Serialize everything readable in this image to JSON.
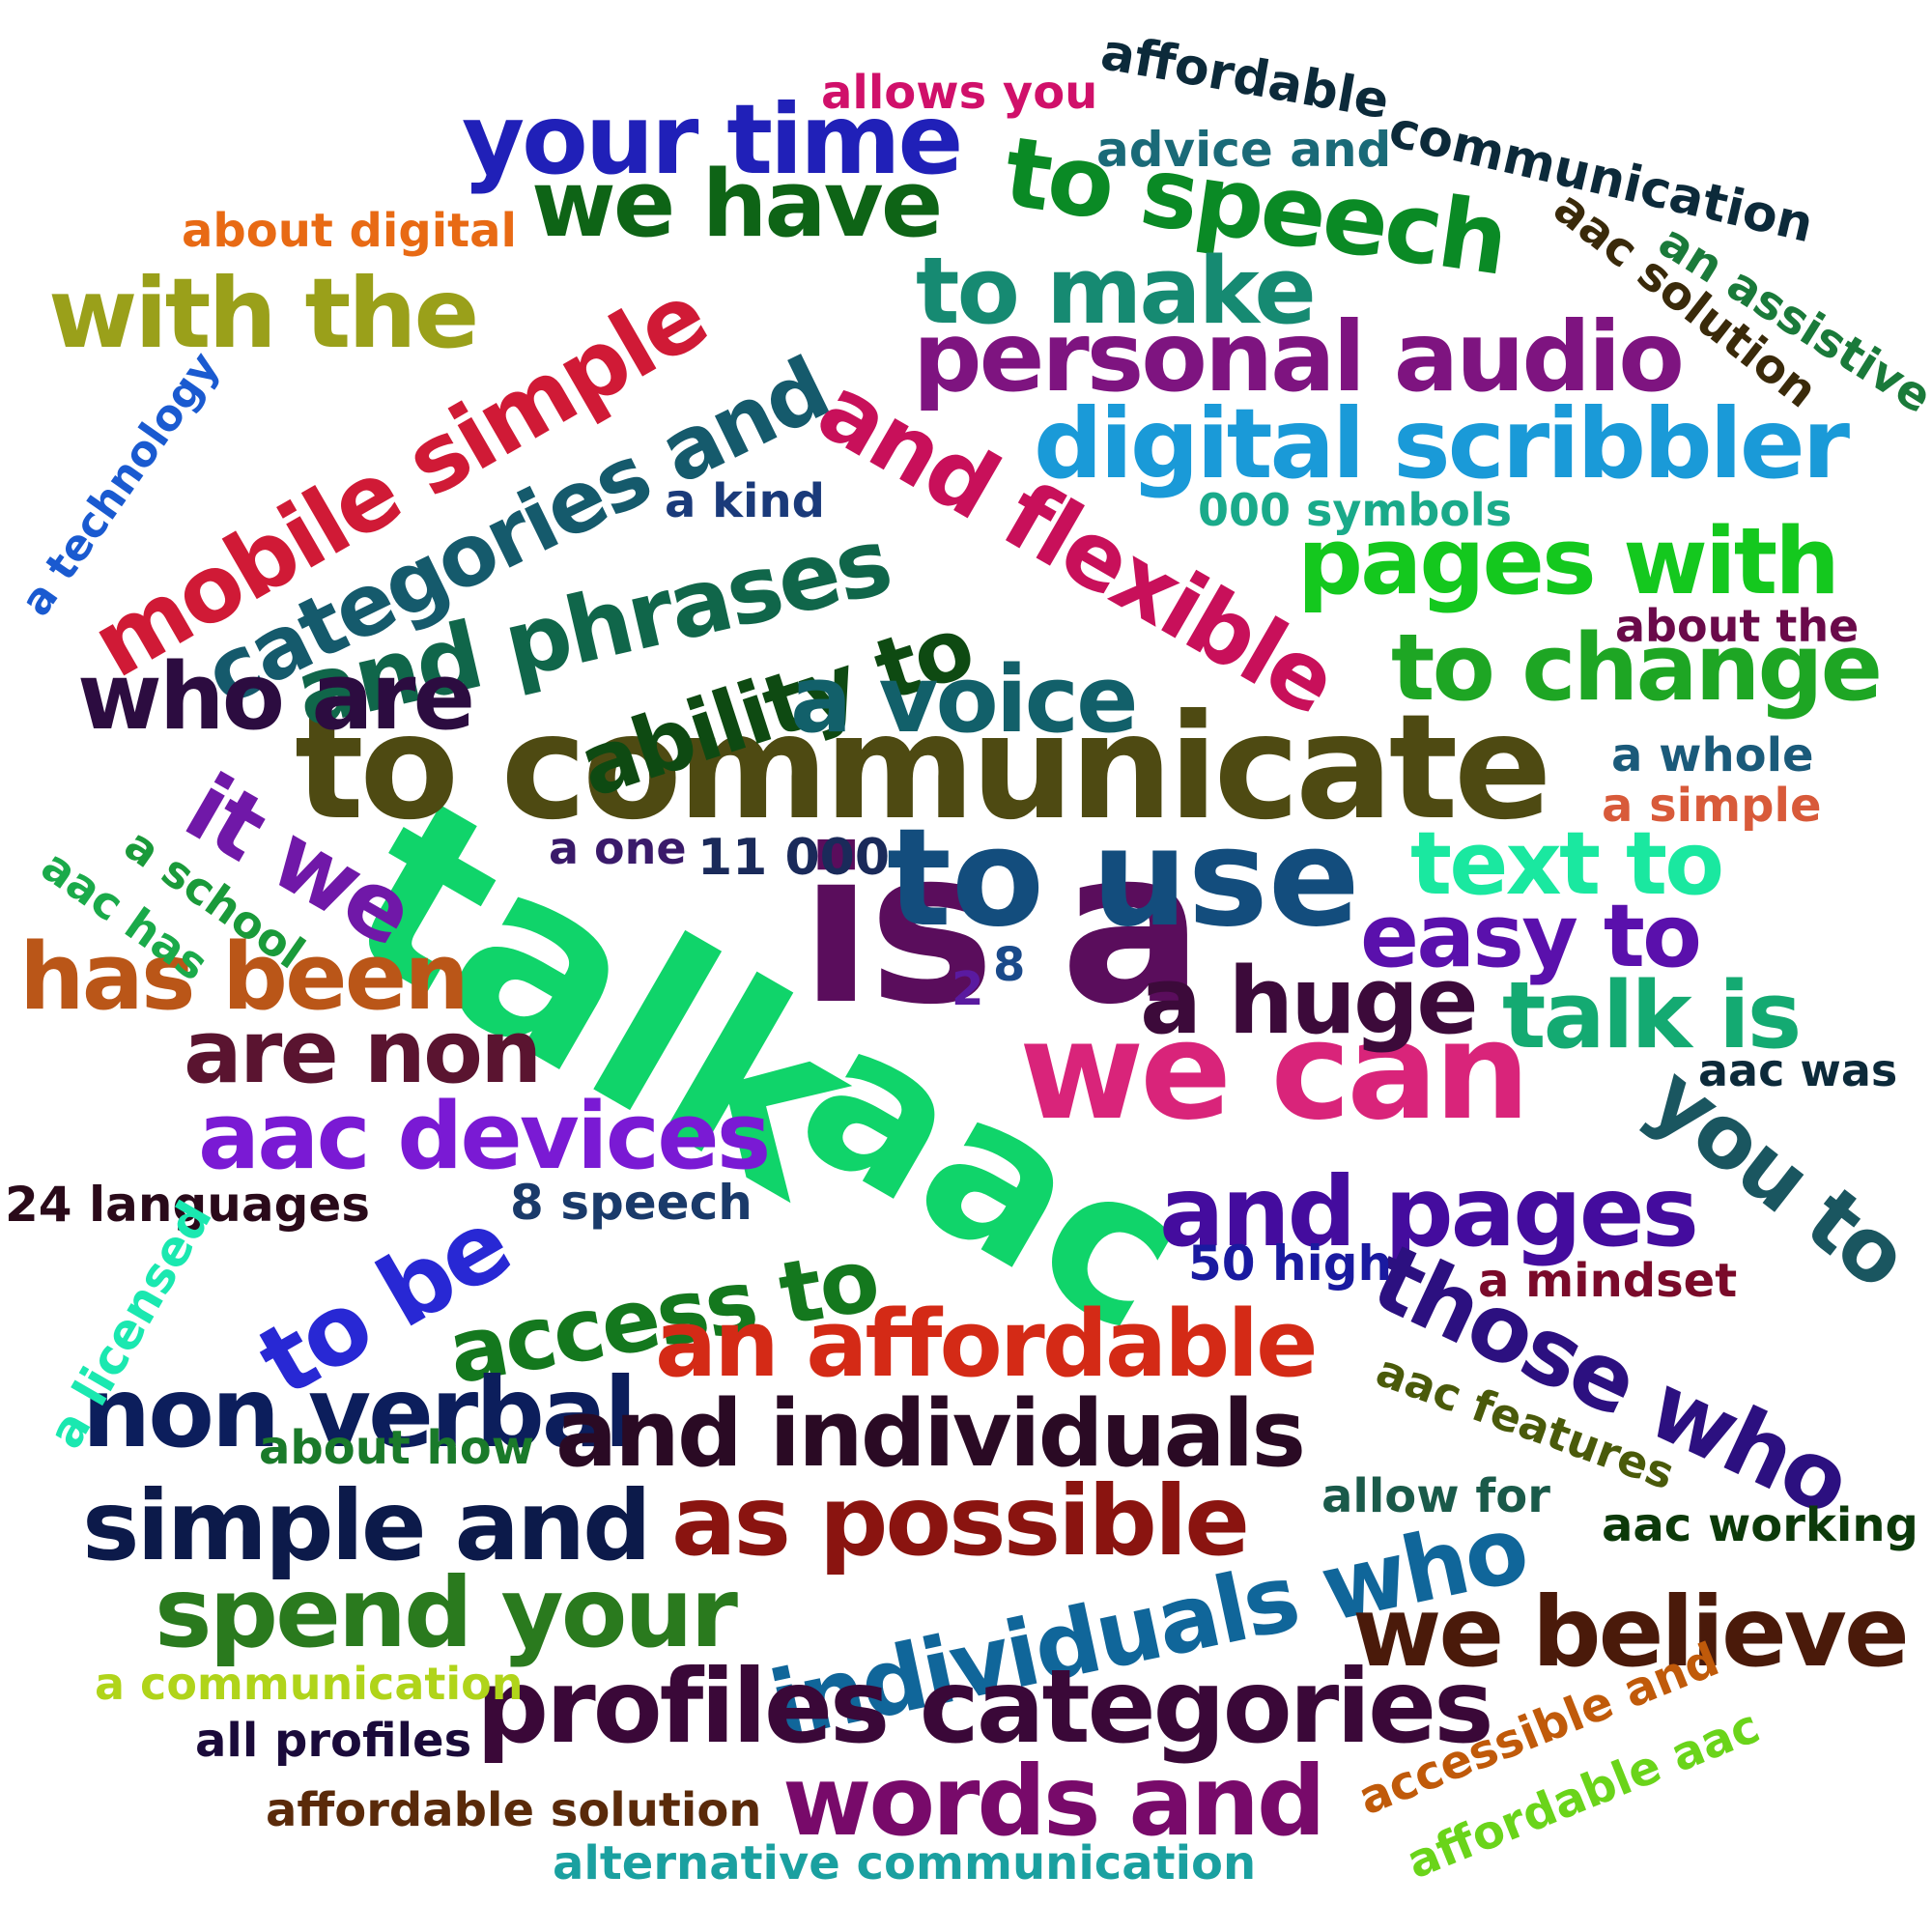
{
  "words": [
    {
      "text": "talk",
      "color": "#10d46a"
    },
    {
      "text": "is a",
      "color": "#5a0d5c"
    },
    {
      "text": "aac",
      "color": "#10d46a"
    },
    {
      "text": "to communicate",
      "color": "#4e4a12"
    },
    {
      "text": "to use",
      "color": "#134d7d"
    },
    {
      "text": "we can",
      "color": "#d9247a"
    },
    {
      "text": "your time",
      "color": "#2020b8"
    },
    {
      "text": "we have",
      "color": "#0e6416"
    },
    {
      "text": "to speech",
      "color": "#0a8a25"
    },
    {
      "text": "with the",
      "color": "#9aa01a"
    },
    {
      "text": "mobile simple",
      "color": "#d01a36"
    },
    {
      "text": "categories and",
      "color": "#155a6c"
    },
    {
      "text": "to make",
      "color": "#168a72"
    },
    {
      "text": "personal audio",
      "color": "#7e1480"
    },
    {
      "text": "digital scribbler",
      "color": "#1a9ad8"
    },
    {
      "text": "and flexible",
      "color": "#c8105a"
    },
    {
      "text": "and phrases",
      "color": "#10664a"
    },
    {
      "text": "ability to",
      "color": "#0e4a12"
    },
    {
      "text": "pages with",
      "color": "#14c81e"
    },
    {
      "text": "to change",
      "color": "#1ea624"
    },
    {
      "text": "who are",
      "color": "#2c0c40"
    },
    {
      "text": "a voice",
      "color": "#12606a"
    },
    {
      "text": "it we",
      "color": "#7018a8"
    },
    {
      "text": "text to",
      "color": "#1ae8a0"
    },
    {
      "text": "easy to",
      "color": "#5a10ac"
    },
    {
      "text": "has been",
      "color": "#ba5618"
    },
    {
      "text": "a huge",
      "color": "#3c0a3a"
    },
    {
      "text": "talk is",
      "color": "#14aa72"
    },
    {
      "text": "are non",
      "color": "#5a1430"
    },
    {
      "text": "aac devices",
      "color": "#7a1ad4"
    },
    {
      "text": "you to",
      "color": "#1a5660"
    },
    {
      "text": "and pages",
      "color": "#440c9e"
    },
    {
      "text": "to be",
      "color": "#2828d4"
    },
    {
      "text": "access to",
      "color": "#14781e"
    },
    {
      "text": "those who",
      "color": "#2c1080"
    },
    {
      "text": "an affordable",
      "color": "#d42a16"
    },
    {
      "text": "non verbal",
      "color": "#0c1e5c"
    },
    {
      "text": "and individuals",
      "color": "#2a0a24"
    },
    {
      "text": "simple and",
      "color": "#0c1a4a"
    },
    {
      "text": "as possible",
      "color": "#8a1410"
    },
    {
      "text": "individuals who",
      "color": "#10669a"
    },
    {
      "text": "spend your",
      "color": "#2a7a1e"
    },
    {
      "text": "we believe",
      "color": "#4a1a0a"
    },
    {
      "text": "profiles categories",
      "color": "#3a0838"
    },
    {
      "text": "words and",
      "color": "#780a6a"
    },
    {
      "text": "allows you",
      "color": "#d0106a"
    },
    {
      "text": "affordable",
      "color": "#0c2a3a"
    },
    {
      "text": "communication",
      "color": "#0c2a3a"
    },
    {
      "text": "advice and",
      "color": "#1a6a78"
    },
    {
      "text": "about digital",
      "color": "#e86a14"
    },
    {
      "text": "aac solution",
      "color": "#3a2a0a"
    },
    {
      "text": "an assistive",
      "color": "#1a7a3a"
    },
    {
      "text": "a technology",
      "color": "#1a5ad0"
    },
    {
      "text": "a kind",
      "color": "#1a3a7a"
    },
    {
      "text": "000 symbols",
      "color": "#1aaa8a"
    },
    {
      "text": "about the",
      "color": "#6a0a4a"
    },
    {
      "text": "a whole",
      "color": "#1a5a7a"
    },
    {
      "text": "a simple",
      "color": "#d85a3a"
    },
    {
      "text": "a one",
      "color": "#3a1a6a"
    },
    {
      "text": "11 000",
      "color": "#1a2a5a"
    },
    {
      "text": "a school",
      "color": "#1a9a3a"
    },
    {
      "text": "aac has",
      "color": "#1aaa4a"
    },
    {
      "text": "2",
      "color": "#5a1aa0"
    },
    {
      "text": "8",
      "color": "#1a4a8a"
    },
    {
      "text": "aac was",
      "color": "#0c2a3a"
    },
    {
      "text": "24 languages",
      "color": "#2a0a1a"
    },
    {
      "text": "8 speech",
      "color": "#1a3a6a"
    },
    {
      "text": "50 high",
      "color": "#1a1aa0"
    },
    {
      "text": "a mindset",
      "color": "#7a0a2a"
    },
    {
      "text": "a licensed",
      "color": "#1ae8b0"
    },
    {
      "text": "aac features",
      "color": "#4a5a0a"
    },
    {
      "text": "about how",
      "color": "#1a7a2a"
    },
    {
      "text": "allow for",
      "color": "#1a5a4a"
    },
    {
      "text": "aac working",
      "color": "#0c3a0a"
    },
    {
      "text": "a communication",
      "color": "#b0d41a"
    },
    {
      "text": "all profiles",
      "color": "#1a0a3a"
    },
    {
      "text": "accessible and",
      "color": "#c05a0a"
    },
    {
      "text": "affordable aac",
      "color": "#6ad41a"
    },
    {
      "text": "affordable solution",
      "color": "#5a2a0a"
    },
    {
      "text": "alternative communication",
      "color": "#1aa0a0"
    }
  ]
}
